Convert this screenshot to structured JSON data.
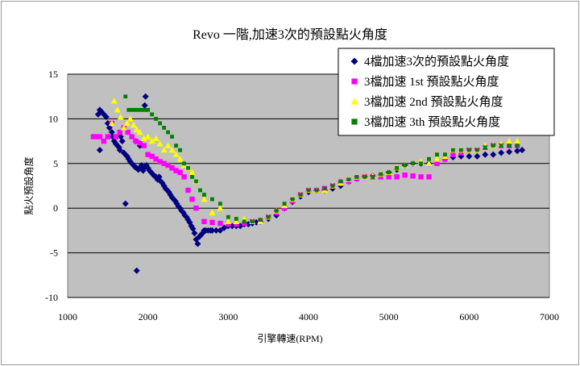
{
  "chart_data": {
    "type": "scatter",
    "title": "Revo 一階,加速3次的預設點火角度",
    "xlabel": "引擎轉速(RPM)",
    "ylabel": "點火預設角度",
    "xlim": [
      1000,
      7000
    ],
    "ylim": [
      -10,
      15
    ],
    "xticks": [
      1000,
      2000,
      3000,
      4000,
      5000,
      6000,
      7000
    ],
    "yticks": [
      -10,
      -5,
      0,
      5,
      10,
      15
    ],
    "grid": true,
    "legend_position": "top-right",
    "plot_background": "#c0c0c0",
    "series": [
      {
        "name": "4檔加速3次的預設點火角度",
        "marker": "diamond",
        "color": "#000080",
        "points": [
          [
            1380,
            10.5
          ],
          [
            1400,
            11
          ],
          [
            1420,
            10.8
          ],
          [
            1450,
            10.5
          ],
          [
            1480,
            10.2
          ],
          [
            1500,
            9.5
          ],
          [
            1520,
            9
          ],
          [
            1550,
            8.5
          ],
          [
            1560,
            8
          ],
          [
            1580,
            7.5
          ],
          [
            1600,
            7.2
          ],
          [
            1620,
            7
          ],
          [
            1640,
            6.8
          ],
          [
            1650,
            6.5
          ],
          [
            1660,
            8
          ],
          [
            1680,
            7.5
          ],
          [
            1700,
            6.2
          ],
          [
            1720,
            6
          ],
          [
            1740,
            5.8
          ],
          [
            1760,
            5.5
          ],
          [
            1780,
            5.2
          ],
          [
            1800,
            5
          ],
          [
            1820,
            4.8
          ],
          [
            1840,
            4.6
          ],
          [
            1860,
            4.5
          ],
          [
            1880,
            4.3
          ],
          [
            1900,
            4.5
          ],
          [
            1920,
            4.8
          ],
          [
            1940,
            4.2
          ],
          [
            1960,
            4.6
          ],
          [
            1980,
            4.8
          ],
          [
            2000,
            4.5
          ],
          [
            2020,
            4.2
          ],
          [
            2040,
            4.0
          ],
          [
            2060,
            3.8
          ],
          [
            2080,
            3.6
          ],
          [
            2100,
            3.5
          ],
          [
            2120,
            3.2
          ],
          [
            2140,
            3.5
          ],
          [
            2160,
            3.0
          ],
          [
            2180,
            2.8
          ],
          [
            2200,
            2.5
          ],
          [
            2220,
            2.2
          ],
          [
            2240,
            2.0
          ],
          [
            2260,
            1.8
          ],
          [
            2280,
            1.5
          ],
          [
            2300,
            1.2
          ],
          [
            2320,
            1.0
          ],
          [
            2340,
            0.8
          ],
          [
            2360,
            0.5
          ],
          [
            2380,
            0.2
          ],
          [
            2400,
            0
          ],
          [
            2420,
            -0.3
          ],
          [
            2440,
            -0.5
          ],
          [
            2460,
            -0.8
          ],
          [
            2480,
            -1.0
          ],
          [
            2500,
            -1.3
          ],
          [
            2520,
            -1.6
          ],
          [
            2540,
            -2.0
          ],
          [
            2560,
            -2.3
          ],
          [
            2580,
            -2.8
          ],
          [
            2600,
            -3.5
          ],
          [
            2620,
            -4
          ],
          [
            2640,
            -3.2
          ],
          [
            2660,
            -3
          ],
          [
            2680,
            -2.8
          ],
          [
            2700,
            -2.5
          ],
          [
            2720,
            -2.5
          ],
          [
            2750,
            -2.5
          ],
          [
            2780,
            -2.5
          ],
          [
            2800,
            -2.5
          ],
          [
            2850,
            -2.5
          ],
          [
            2900,
            -2.5
          ],
          [
            2950,
            -2.2
          ],
          [
            3000,
            -2
          ],
          [
            3050,
            -2
          ],
          [
            3100,
            -2
          ],
          [
            3150,
            -2
          ],
          [
            3200,
            -1.8
          ],
          [
            3250,
            -1.8
          ],
          [
            3300,
            -1.7
          ],
          [
            3350,
            -1.6
          ],
          [
            3400,
            -1.5
          ],
          [
            3500,
            -1.2
          ],
          [
            3600,
            -0.8
          ],
          [
            3700,
            0
          ],
          [
            3800,
            0.7
          ],
          [
            3900,
            1.3
          ],
          [
            4000,
            1.8
          ],
          [
            4100,
            2
          ],
          [
            4200,
            2
          ],
          [
            4300,
            2.2
          ],
          [
            4400,
            2.5
          ],
          [
            4500,
            3
          ],
          [
            4600,
            3.3
          ],
          [
            4700,
            3.5
          ],
          [
            4800,
            3.6
          ],
          [
            4900,
            3.7
          ],
          [
            5000,
            4
          ],
          [
            5100,
            4.3
          ],
          [
            5200,
            4.8
          ],
          [
            5300,
            5
          ],
          [
            5400,
            5
          ],
          [
            5500,
            5
          ],
          [
            5600,
            5.3
          ],
          [
            5700,
            5.5
          ],
          [
            5800,
            5.7
          ],
          [
            5900,
            5.8
          ],
          [
            6000,
            5.8
          ],
          [
            6100,
            5.8
          ],
          [
            6200,
            6
          ],
          [
            6300,
            6
          ],
          [
            6400,
            6.2
          ],
          [
            6500,
            6.3
          ],
          [
            6600,
            6.4
          ],
          [
            6660,
            6.5
          ],
          [
            1400,
            6.5
          ],
          [
            1720,
            0.5
          ],
          [
            1860,
            -7
          ],
          [
            1960,
            11.5
          ],
          [
            1970,
            12.5
          ],
          [
            1900,
            7
          ],
          [
            1850,
            7.5
          ]
        ]
      },
      {
        "name": "3檔加速 1st 預設點火角度",
        "marker": "square",
        "color": "#ff00ff",
        "points": [
          [
            1320,
            8
          ],
          [
            1360,
            8
          ],
          [
            1400,
            8
          ],
          [
            1450,
            7.5
          ],
          [
            1500,
            8
          ],
          [
            1550,
            9.5
          ],
          [
            1600,
            8
          ],
          [
            1650,
            8.5
          ],
          [
            1700,
            9
          ],
          [
            1750,
            8.5
          ],
          [
            1800,
            8
          ],
          [
            1850,
            7.5
          ],
          [
            1900,
            7.3
          ],
          [
            1950,
            7
          ],
          [
            2000,
            6
          ],
          [
            2050,
            5.8
          ],
          [
            2100,
            5.5
          ],
          [
            2150,
            5.2
          ],
          [
            2200,
            5
          ],
          [
            2250,
            4.8
          ],
          [
            2300,
            4.5
          ],
          [
            2350,
            4.2
          ],
          [
            2400,
            4
          ],
          [
            2450,
            3.5
          ],
          [
            2500,
            2
          ],
          [
            2550,
            1
          ],
          [
            2600,
            0
          ],
          [
            2700,
            -1.5
          ],
          [
            2800,
            -1.6
          ],
          [
            2900,
            -1.7
          ],
          [
            3000,
            -1.8
          ],
          [
            3100,
            -1.8
          ],
          [
            3200,
            -1.7
          ],
          [
            3300,
            -1.5
          ],
          [
            3400,
            -1.5
          ],
          [
            3500,
            -1
          ],
          [
            3600,
            -0.5
          ],
          [
            3700,
            0
          ],
          [
            3800,
            0.8
          ],
          [
            3900,
            1.5
          ],
          [
            4000,
            2
          ],
          [
            4100,
            2
          ],
          [
            4200,
            2.2
          ],
          [
            4300,
            2.5
          ],
          [
            4400,
            2.8
          ],
          [
            4500,
            3
          ],
          [
            4600,
            3.3
          ],
          [
            4700,
            3.5
          ],
          [
            4800,
            3.5
          ],
          [
            4900,
            3.5
          ],
          [
            5000,
            3.5
          ],
          [
            5100,
            3.5
          ],
          [
            5200,
            3.7
          ],
          [
            5300,
            3.6
          ],
          [
            5400,
            3.5
          ],
          [
            5500,
            3.5
          ],
          [
            5600,
            5
          ],
          [
            5700,
            5.5
          ],
          [
            5800,
            6
          ],
          [
            5900,
            6.2
          ],
          [
            6000,
            6.5
          ],
          [
            6100,
            6.5
          ],
          [
            6200,
            6.8
          ],
          [
            6300,
            7
          ],
          [
            6400,
            7
          ],
          [
            6500,
            7
          ],
          [
            6600,
            7
          ]
        ]
      },
      {
        "name": "3檔加速 2nd 預設點火角度",
        "marker": "triangle",
        "color": "#ffff00",
        "points": [
          [
            1550,
            9.5
          ],
          [
            1580,
            12
          ],
          [
            1620,
            11
          ],
          [
            1660,
            10.2
          ],
          [
            1700,
            9
          ],
          [
            1740,
            9.5
          ],
          [
            1780,
            10
          ],
          [
            1820,
            9.3
          ],
          [
            1860,
            8.8
          ],
          [
            1900,
            8.5
          ],
          [
            1950,
            7.8
          ],
          [
            2000,
            8
          ],
          [
            2050,
            7.5
          ],
          [
            2100,
            7.8
          ],
          [
            2150,
            7.2
          ],
          [
            2200,
            6.5
          ],
          [
            2250,
            7
          ],
          [
            2300,
            6.5
          ],
          [
            2350,
            6
          ],
          [
            2400,
            5.5
          ],
          [
            2450,
            4.8
          ],
          [
            2500,
            4.5
          ],
          [
            2550,
            4
          ],
          [
            2600,
            3
          ],
          [
            2700,
            1
          ],
          [
            2800,
            -0.5
          ],
          [
            2900,
            0
          ],
          [
            3000,
            -1.5
          ],
          [
            3100,
            -1.5
          ],
          [
            3200,
            -1.2
          ],
          [
            3300,
            -1.5
          ],
          [
            3400,
            -1.5
          ],
          [
            3500,
            -1
          ],
          [
            3600,
            -0.3
          ],
          [
            3700,
            0.3
          ],
          [
            3800,
            1
          ],
          [
            3900,
            1.5
          ],
          [
            4000,
            2
          ],
          [
            4100,
            2
          ],
          [
            4200,
            2
          ],
          [
            4300,
            2.5
          ],
          [
            4400,
            2.8
          ],
          [
            4500,
            3.2
          ],
          [
            4600,
            3.5
          ],
          [
            4700,
            3.5
          ],
          [
            4800,
            3.6
          ],
          [
            4900,
            3.8
          ],
          [
            5000,
            4
          ],
          [
            5100,
            4.5
          ],
          [
            5200,
            4.8
          ],
          [
            5300,
            5
          ],
          [
            5400,
            5.2
          ],
          [
            5500,
            5
          ],
          [
            5600,
            5.5
          ],
          [
            5700,
            5.8
          ],
          [
            5800,
            6.5
          ],
          [
            5900,
            6.5
          ],
          [
            6000,
            6.5
          ],
          [
            6100,
            6.5
          ],
          [
            6200,
            7
          ],
          [
            6300,
            7
          ],
          [
            6400,
            7.2
          ],
          [
            6500,
            7.5
          ],
          [
            6600,
            7.5
          ]
        ]
      },
      {
        "name": "3檔加速 3th 預設點火角度",
        "marker": "square",
        "color": "#008000",
        "points": [
          [
            1720,
            12.5
          ],
          [
            1760,
            11
          ],
          [
            1800,
            11
          ],
          [
            1840,
            11
          ],
          [
            1880,
            11
          ],
          [
            1920,
            11
          ],
          [
            1960,
            11
          ],
          [
            2000,
            11
          ],
          [
            2050,
            10.5
          ],
          [
            2100,
            10
          ],
          [
            2150,
            9.5
          ],
          [
            2200,
            9
          ],
          [
            2250,
            8.5
          ],
          [
            2300,
            8
          ],
          [
            2350,
            7
          ],
          [
            2400,
            6.5
          ],
          [
            2450,
            5
          ],
          [
            2500,
            4.5
          ],
          [
            2550,
            3.5
          ],
          [
            2600,
            3
          ],
          [
            2650,
            2
          ],
          [
            2700,
            1.5
          ],
          [
            2800,
            1
          ],
          [
            2900,
            0.5
          ],
          [
            3000,
            -1
          ],
          [
            3100,
            -1.2
          ],
          [
            3200,
            -1.5
          ],
          [
            3300,
            -1.5
          ],
          [
            3400,
            -1.3
          ],
          [
            3500,
            -1
          ],
          [
            3600,
            -0.3
          ],
          [
            3700,
            0.5
          ],
          [
            3800,
            1
          ],
          [
            3900,
            1.5
          ],
          [
            4000,
            2
          ],
          [
            4100,
            2
          ],
          [
            4200,
            2.2
          ],
          [
            4300,
            2.5
          ],
          [
            4400,
            3
          ],
          [
            4500,
            3.2
          ],
          [
            4600,
            3.5
          ],
          [
            4700,
            3.5
          ],
          [
            4800,
            3.5
          ],
          [
            4900,
            3.8
          ],
          [
            5000,
            4
          ],
          [
            5100,
            4.5
          ],
          [
            5200,
            4.8
          ],
          [
            5300,
            5
          ],
          [
            5400,
            5
          ],
          [
            5500,
            5.5
          ],
          [
            5600,
            6
          ],
          [
            5700,
            6
          ],
          [
            5800,
            6.5
          ],
          [
            5900,
            6.5
          ],
          [
            6000,
            6.5
          ],
          [
            6100,
            6.5
          ],
          [
            6200,
            6.8
          ],
          [
            6300,
            7
          ],
          [
            6400,
            7
          ],
          [
            6500,
            7
          ],
          [
            6600,
            7
          ]
        ]
      }
    ]
  }
}
